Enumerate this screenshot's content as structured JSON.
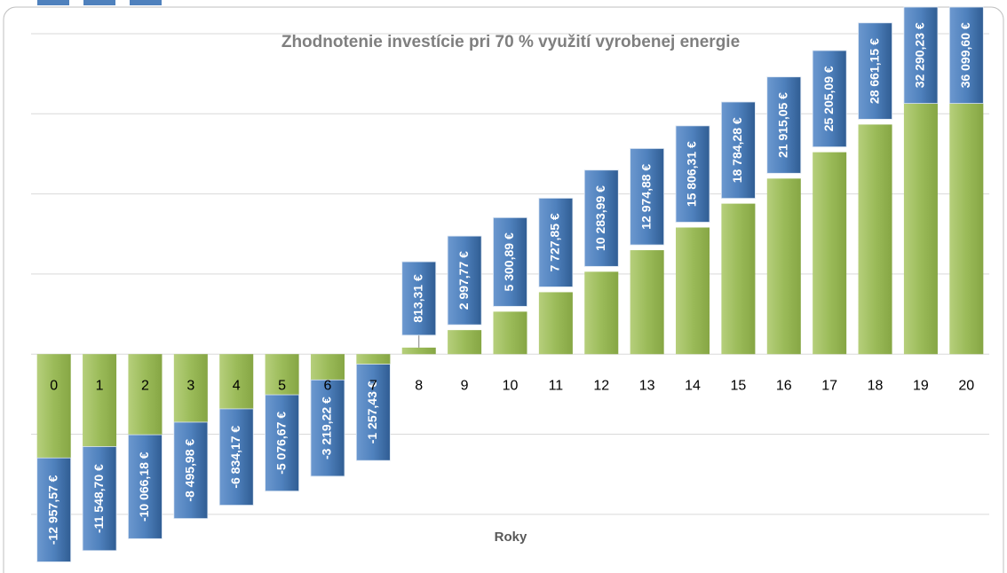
{
  "chart_data": {
    "type": "bar",
    "title": "Zhodnotenie investície pri 70 % využití vyrobenej energie",
    "x_label": "Roky",
    "categories": [
      "0",
      "1",
      "2",
      "3",
      "4",
      "5",
      "6",
      "7",
      "8",
      "9",
      "10",
      "11",
      "12",
      "13",
      "14",
      "15",
      "16",
      "17",
      "18",
      "19",
      "20"
    ],
    "values": [
      -12957.57,
      -11548.7,
      -10066.18,
      -8495.98,
      -6834.17,
      -5076.67,
      -3219.22,
      -1257.43,
      813.31,
      2997.77,
      5300.89,
      7727.85,
      10283.99,
      12974.88,
      15806.31,
      18784.28,
      21915.05,
      25205.09,
      28661.15,
      32290.23,
      36099.6
    ],
    "value_labels": [
      "-12 957,57 €",
      "-11 548,70 €",
      "-10 066,18 €",
      "-8 495,98 €",
      "-6 834,17 €",
      "-5 076,67 €",
      "-3 219,22 €",
      "-1 257,43 €",
      "813,31 €",
      "2 997,77 €",
      "5 300,89 €",
      "7 727,85 €",
      "10 283,99 €",
      "12 974,88 €",
      "15 806,31 €",
      "18 784,28 €",
      "21 915,05 €",
      "25 205,09 €",
      "28 661,15 €",
      "32 290,23 €",
      "36 099,60 €"
    ],
    "color": "#9bbb59",
    "label_color": "#4f81bd",
    "ylim": [
      -25000,
      40000
    ],
    "yticks": [
      -20000,
      -10000,
      0,
      10000,
      20000,
      30000,
      40000
    ],
    "grid": true
  }
}
